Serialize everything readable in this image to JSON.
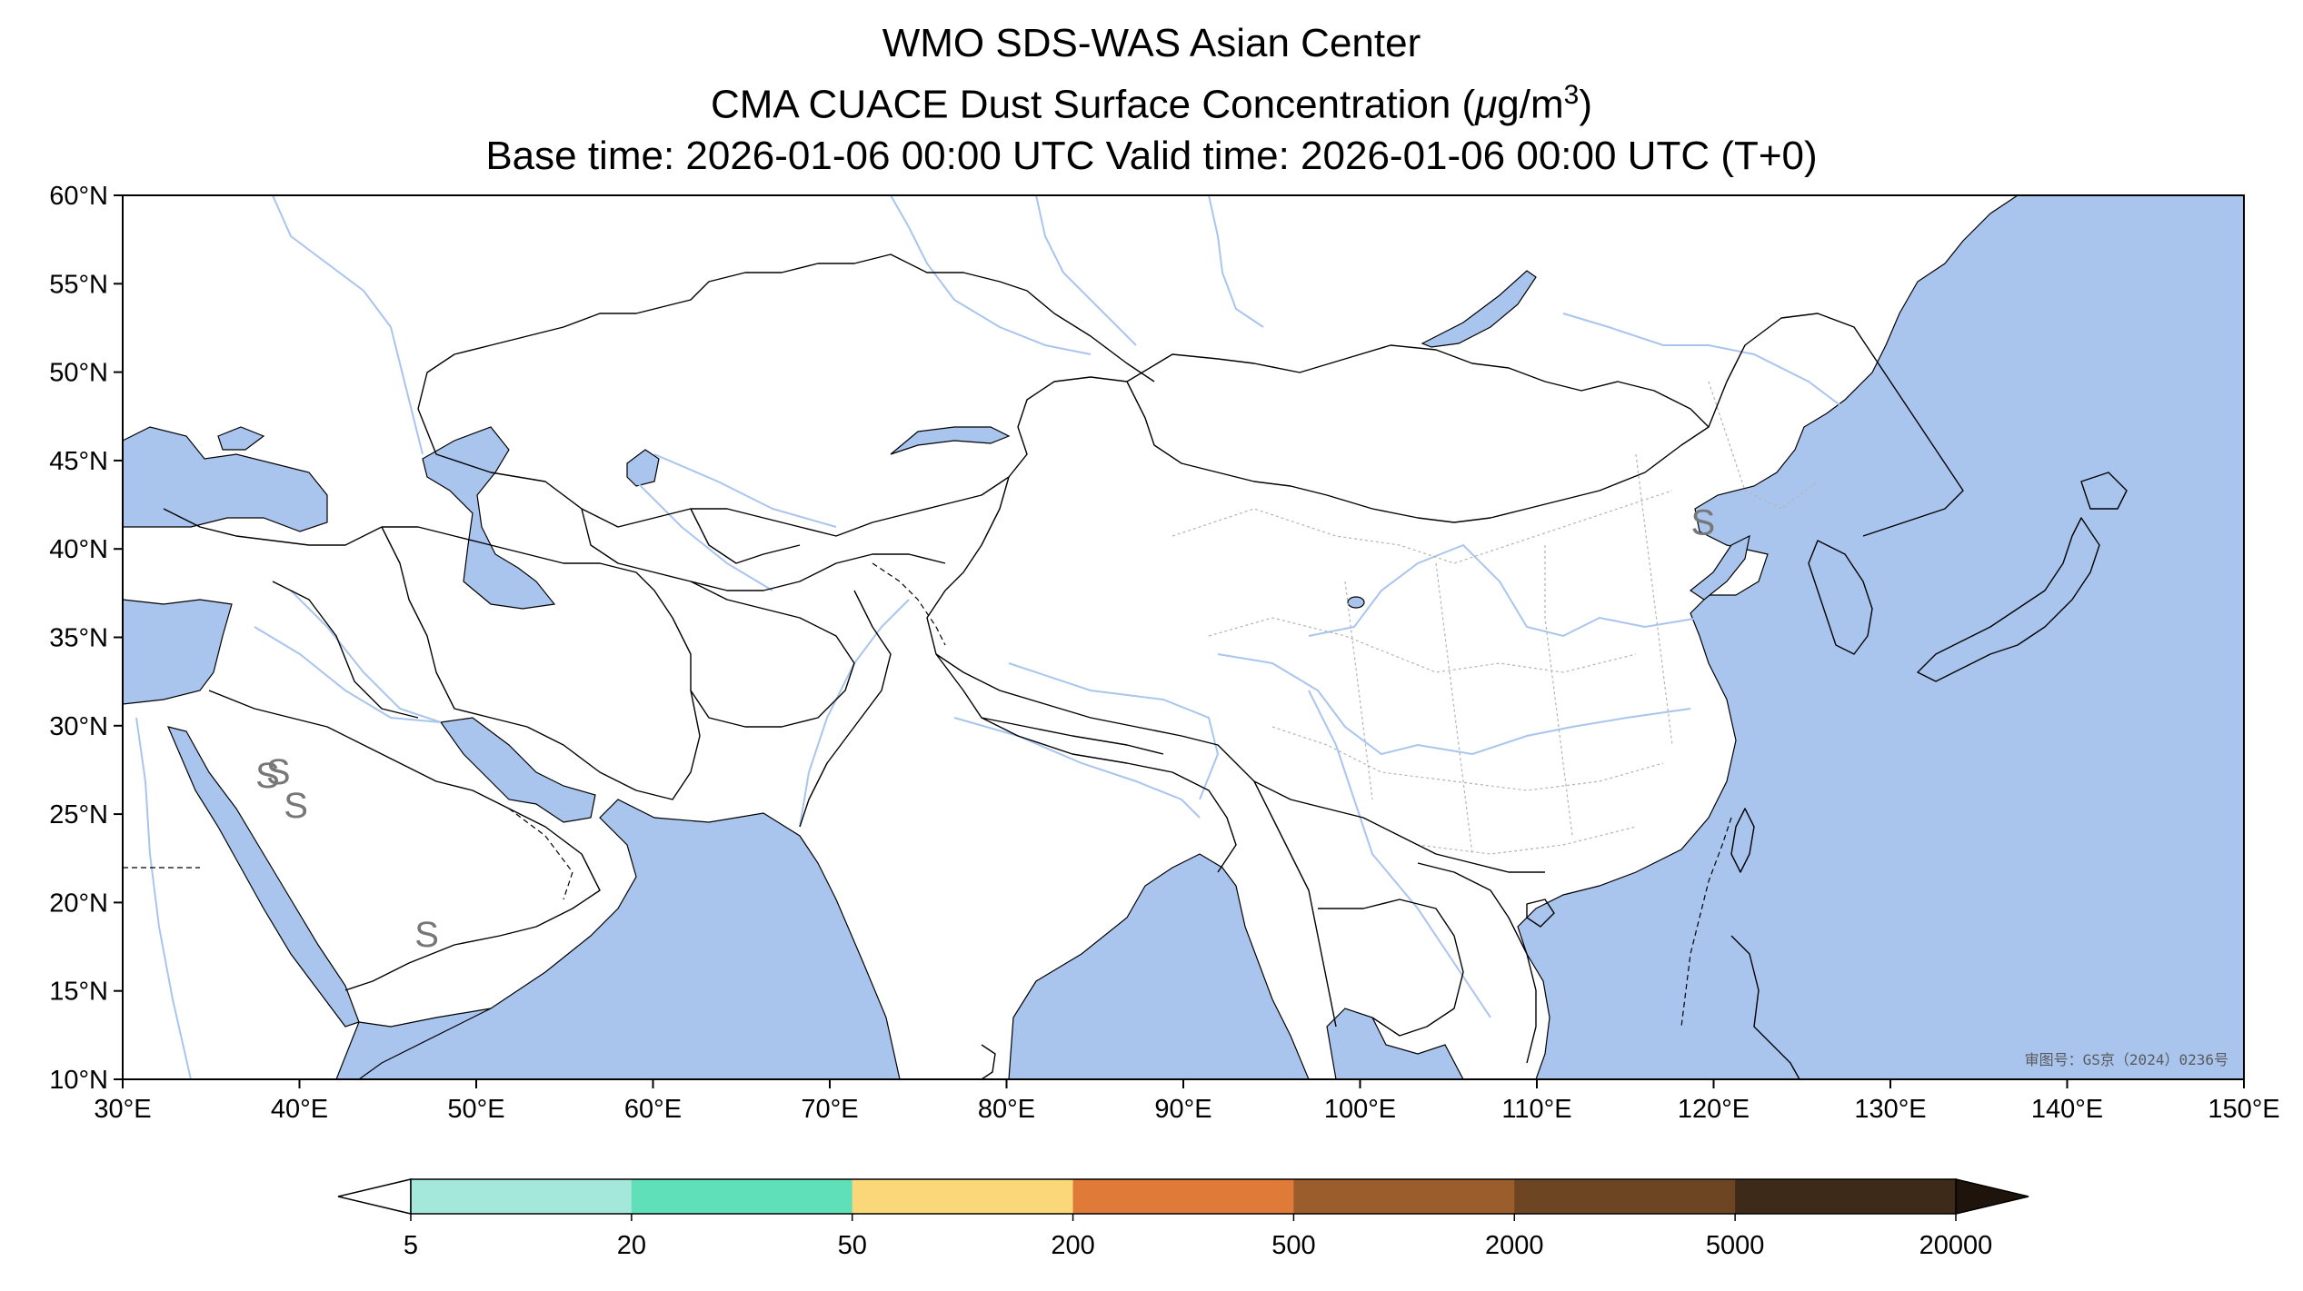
{
  "title": {
    "line1": "WMO SDS-WAS Asian Center",
    "line2_prefix": "CMA CUACE Dust Surface Concentration (",
    "line2_unit_mu": "μ",
    "line2_unit_rest": "g/m",
    "line2_unit_exp": "3",
    "line2_suffix": ")",
    "line3": "Base time: 2026-01-06 00:00 UTC Valid time: 2026-01-06 00:00 UTC (T+0)"
  },
  "map": {
    "lon_range": [
      30,
      150
    ],
    "lat_range": [
      10,
      60
    ],
    "lon_ticks": [
      "30°E",
      "40°E",
      "50°E",
      "60°E",
      "70°E",
      "80°E",
      "90°E",
      "100°E",
      "110°E",
      "120°E",
      "130°E",
      "140°E",
      "150°E"
    ],
    "lat_ticks": [
      "10°N",
      "15°N",
      "20°N",
      "25°N",
      "30°N",
      "35°N",
      "40°N",
      "45°N",
      "50°N",
      "55°N",
      "60°N"
    ],
    "approval_stamp": "审图号：GS京（2024）0236号",
    "dust_markers": [
      {
        "lon": 38.2,
        "lat": 26.5,
        "symbol": "S"
      },
      {
        "lon": 38.8,
        "lat": 26.7,
        "symbol": "S"
      },
      {
        "lon": 39.8,
        "lat": 24.8,
        "symbol": "S"
      },
      {
        "lon": 47.2,
        "lat": 17.5,
        "symbol": "S"
      },
      {
        "lon": 119.4,
        "lat": 40.8,
        "symbol": "S"
      }
    ]
  },
  "colors": {
    "water": "#a9c5ee",
    "border": "#000000",
    "province": "#b4b4b4",
    "river": "#a9c5ee"
  },
  "colorbar": {
    "levels": [
      "5",
      "20",
      "50",
      "200",
      "500",
      "2000",
      "5000",
      "20000"
    ],
    "colors": [
      "#a3e8da",
      "#5fe0b8",
      "#fad879",
      "#e07a38",
      "#9b5d2b",
      "#6e4522",
      "#3e2a19"
    ],
    "under_color": "#ffffff",
    "over_color": "#1f140c"
  }
}
